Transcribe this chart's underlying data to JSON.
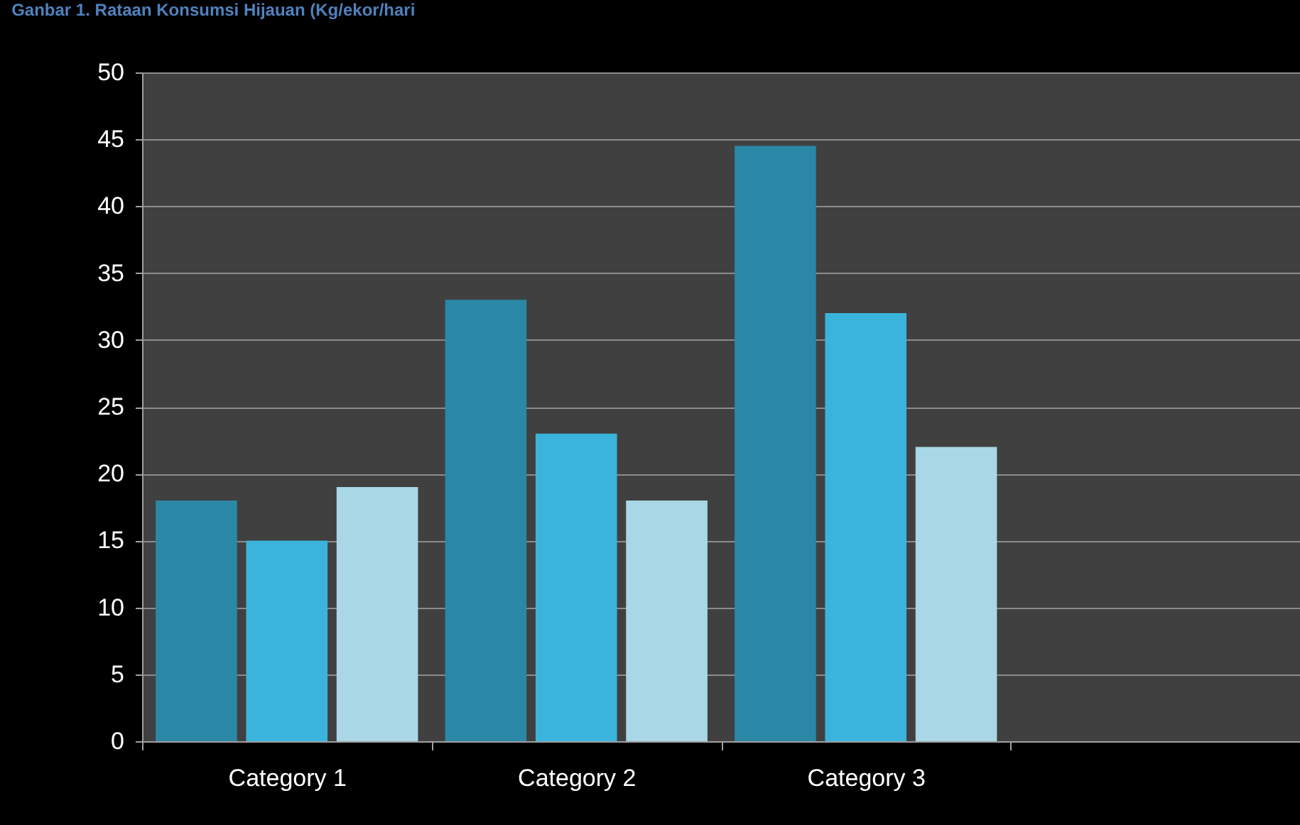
{
  "chart_data": {
    "type": "bar",
    "title": "Ganbar 1. Rataan Konsumsi Hijauan (Kg/ekor/hari",
    "categories": [
      "Category 1",
      "Category 2",
      "Category 3",
      null
    ],
    "series": [
      {
        "color": "#2b87a6",
        "values": [
          18,
          33,
          44.5,
          null
        ]
      },
      {
        "color": "#3ab4dc",
        "values": [
          15,
          23,
          32,
          null
        ]
      },
      {
        "color": "#a9d7e6",
        "values": [
          19,
          18,
          22,
          null
        ]
      }
    ],
    "ylim": [
      0,
      50
    ],
    "yticks": [
      0,
      5,
      10,
      15,
      20,
      25,
      30,
      35,
      40,
      45,
      50
    ],
    "grid": "y"
  }
}
